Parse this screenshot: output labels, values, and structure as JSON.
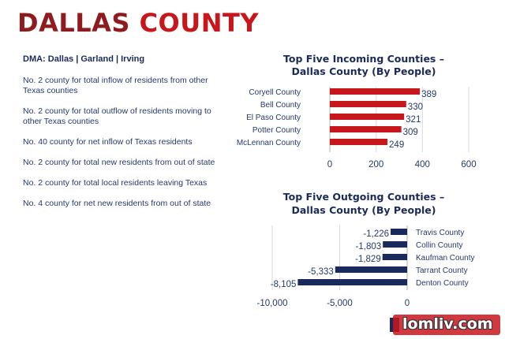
{
  "header": {
    "title_part1": "DALLAS",
    "title_part2": "COUNTY"
  },
  "dma": "DMA: Dallas | Garland | Irving",
  "facts": [
    "No. 2 county for total inflow of residents from other Texas counties",
    "No. 2 county for total outflow of residents moving to other Texas counties",
    "No. 40 county for net inflow of Texas residents",
    "No. 2 county for total new residents from out of state",
    "No. 2 county for total local residents leaving Texas",
    "No. 4 county for net new residents from out of state"
  ],
  "colors": {
    "incoming_bar": "#c8161d",
    "outgoing_bar": "#1a2a5a",
    "title_dark": "#8f1b1f",
    "title_red": "#c8161d"
  },
  "watermark": "lomliv.com",
  "chart_data": [
    {
      "type": "bar",
      "orientation": "horizontal",
      "title_line1": "Top Five Incoming Counties –",
      "title_line2": "Dallas County (By People)",
      "categories": [
        "Coryell County",
        "Bell County",
        "El Paso County",
        "Potter County",
        "McLennan County"
      ],
      "values": [
        389,
        330,
        321,
        309,
        249
      ],
      "xlim": [
        0,
        600
      ],
      "xticks": [
        0,
        200,
        400,
        600
      ]
    },
    {
      "type": "bar",
      "orientation": "horizontal",
      "title_line1": "Top Five Outgoing Counties –",
      "title_line2": "Dallas County (By People)",
      "categories": [
        "Travis County",
        "Collin County",
        "Kaufman County",
        "Tarrant County",
        "Denton County"
      ],
      "values": [
        -1226,
        -1803,
        -1829,
        -5333,
        -8105
      ],
      "value_labels": [
        "-1,226",
        "-1,803",
        "-1,829",
        "-5,333",
        "-8,105"
      ],
      "xlim": [
        -10000,
        0
      ],
      "xticks": [
        -10000,
        -5000,
        0
      ],
      "xtick_labels": [
        "-10,000",
        "-5,000",
        "0"
      ]
    }
  ]
}
